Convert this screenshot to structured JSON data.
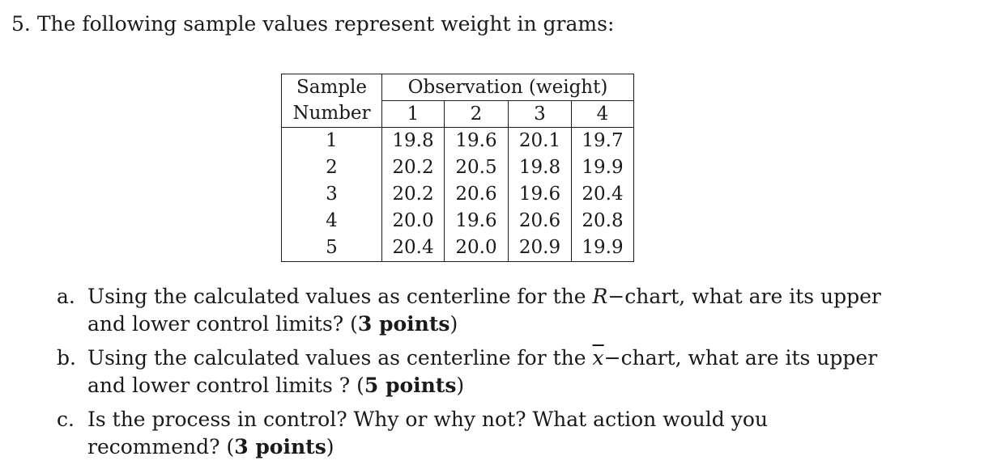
{
  "question": {
    "number": "5.",
    "text": "The following sample values represent weight in grams:"
  },
  "table": {
    "header": {
      "sample_line1": "Sample",
      "sample_line2": "Number",
      "group_label": "Observation (weight)",
      "obs_numbers": [
        "1",
        "2",
        "3",
        "4"
      ]
    },
    "rows": [
      {
        "sample": "1",
        "values": [
          "19.8",
          "19.6",
          "20.1",
          "19.7"
        ]
      },
      {
        "sample": "2",
        "values": [
          "20.2",
          "20.5",
          "19.8",
          "19.9"
        ]
      },
      {
        "sample": "3",
        "values": [
          "20.2",
          "20.6",
          "19.6",
          "20.4"
        ]
      },
      {
        "sample": "4",
        "values": [
          "20.0",
          "19.6",
          "20.6",
          "20.8"
        ]
      },
      {
        "sample": "5",
        "values": [
          "20.4",
          "20.0",
          "20.9",
          "19.9"
        ]
      }
    ]
  },
  "parts": {
    "a": {
      "letter": "a.",
      "before": "Using the calculated values as centerline for the ",
      "symbol": "R",
      "after": "−chart, what are its upper and lower control limits? (",
      "points": "3 points",
      "close": ")"
    },
    "b": {
      "letter": "b.",
      "before": "Using the calculated values as centerline for the ",
      "symbol": "x",
      "after": "−chart, what are its upper and lower control limits ? (",
      "points": "5 points",
      "close": ")"
    },
    "c": {
      "letter": "c.",
      "before": "Is the process in control? Why or why not? What action would you recommend? (",
      "points": "3 points",
      "close": ")"
    }
  }
}
